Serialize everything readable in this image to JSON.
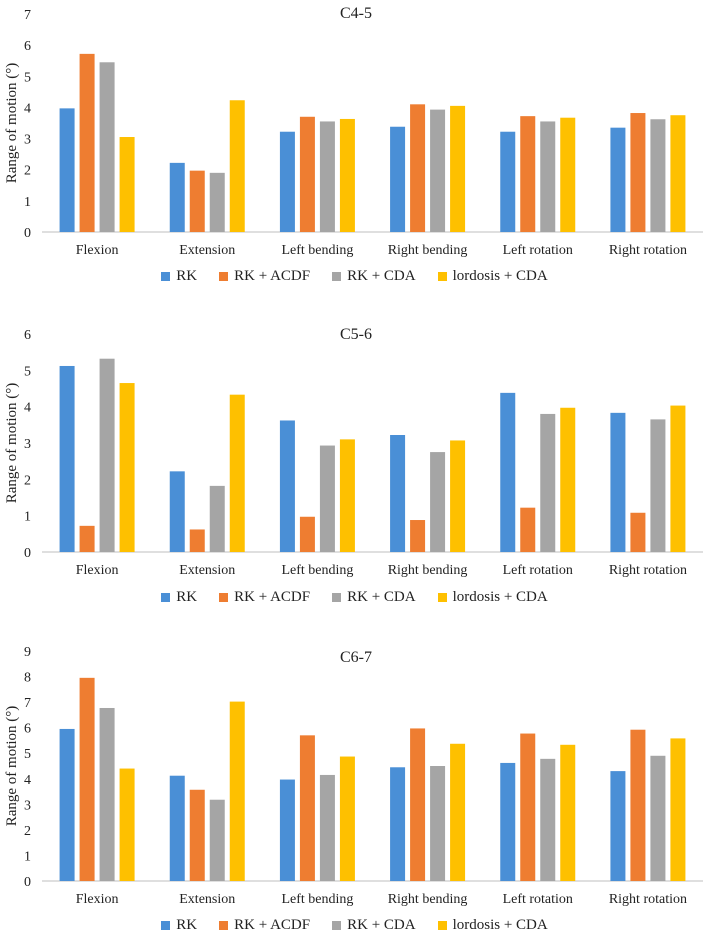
{
  "series_styles": [
    {
      "name": "RK",
      "color": "#4a8fd6"
    },
    {
      "name": "RK + ACDF",
      "color": "#ee7d31"
    },
    {
      "name": "RK + CDA",
      "color": "#a5a5a5"
    },
    {
      "name": "lordosis + CDA",
      "color": "#fec000"
    }
  ],
  "chart_data": [
    {
      "type": "bar",
      "title": "C4-5",
      "ylabel": "Range of motion (°)",
      "xlabel": "",
      "ylim": [
        0,
        7
      ],
      "yticks": [
        "0",
        "1",
        "2",
        "3",
        "4",
        "5",
        "6",
        "7"
      ],
      "grid": false,
      "legend": "bottom",
      "categories": [
        "Flexion",
        "Extension",
        "Left bending",
        "Right bending",
        "Left rotation",
        "Right rotation"
      ],
      "series": [
        {
          "name": "RK",
          "values": [
            3.97,
            2.22,
            3.22,
            3.38,
            3.22,
            3.35
          ]
        },
        {
          "name": "RK + ACDF",
          "values": [
            5.72,
            1.97,
            3.7,
            4.1,
            3.72,
            3.82
          ]
        },
        {
          "name": "RK + CDA",
          "values": [
            5.45,
            1.9,
            3.55,
            3.93,
            3.55,
            3.62
          ]
        },
        {
          "name": "lordosis + CDA",
          "values": [
            3.05,
            4.23,
            3.63,
            4.05,
            3.67,
            3.75
          ]
        }
      ]
    },
    {
      "type": "bar",
      "title": "C5-6",
      "ylabel": "Range of motion (°)",
      "xlabel": "",
      "ylim": [
        0,
        6
      ],
      "yticks": [
        "0",
        "1",
        "2",
        "3",
        "4",
        "5",
        "6"
      ],
      "grid": false,
      "legend": "bottom",
      "categories": [
        "Flexion",
        "Extension",
        "Left bending",
        "Right bending",
        "Left rotation",
        "Right rotation"
      ],
      "series": [
        {
          "name": "RK",
          "values": [
            5.12,
            2.22,
            3.62,
            3.22,
            4.38,
            3.83
          ]
        },
        {
          "name": "RK + ACDF",
          "values": [
            0.72,
            0.62,
            0.97,
            0.88,
            1.22,
            1.08
          ]
        },
        {
          "name": "RK + CDA",
          "values": [
            5.32,
            1.82,
            2.93,
            2.75,
            3.8,
            3.65
          ]
        },
        {
          "name": "lordosis + CDA",
          "values": [
            4.65,
            4.33,
            3.1,
            3.07,
            3.97,
            4.03
          ]
        }
      ]
    },
    {
      "type": "bar",
      "title": "C6-7",
      "ylabel": "Range of motion (°)",
      "xlabel": "",
      "ylim": [
        0,
        9
      ],
      "yticks": [
        "0",
        "1",
        "2",
        "3",
        "4",
        "5",
        "6",
        "7",
        "8",
        "9"
      ],
      "grid": false,
      "legend": "bottom",
      "categories": [
        "Flexion",
        "Extension",
        "Left bending",
        "Right bending",
        "Left rotation",
        "Right rotation"
      ],
      "series": [
        {
          "name": "RK",
          "values": [
            5.95,
            4.12,
            3.97,
            4.45,
            4.62,
            4.3
          ]
        },
        {
          "name": "RK + ACDF",
          "values": [
            7.95,
            3.57,
            5.7,
            5.97,
            5.77,
            5.92
          ]
        },
        {
          "name": "RK + CDA",
          "values": [
            6.77,
            3.18,
            4.15,
            4.5,
            4.78,
            4.9
          ]
        },
        {
          "name": "lordosis + CDA",
          "values": [
            4.4,
            7.02,
            4.87,
            5.37,
            5.33,
            5.58
          ]
        }
      ]
    }
  ]
}
